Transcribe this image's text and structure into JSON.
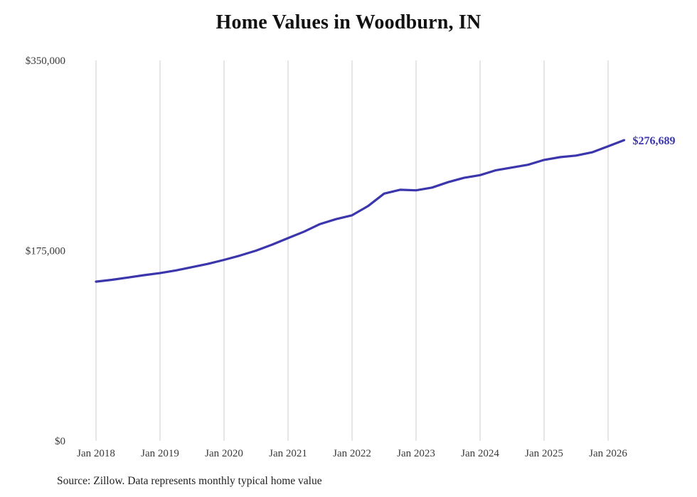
{
  "chart_data": {
    "type": "line",
    "title": "Home Values in Woodburn, IN",
    "source_note": "Source: Zillow. Data represents monthly typical home value",
    "end_label": "$276,689",
    "xlabel": "",
    "ylabel": "",
    "ylim": [
      0,
      350000
    ],
    "x_range": [
      "Jan 2018",
      "Apr 2026"
    ],
    "grid": "vertical-only",
    "legend": "none",
    "colors": {
      "line": "#3b36ab",
      "grid": "#cccccc",
      "title": "#111111",
      "tick": "#3a3a3a",
      "source": "#222222"
    },
    "y_ticks": [
      {
        "v": 0,
        "label": "$0"
      },
      {
        "v": 175000,
        "label": "$175,000"
      },
      {
        "v": 350000,
        "label": "$350,000"
      }
    ],
    "x_ticks": [
      {
        "m": 0,
        "label": "Jan 2018"
      },
      {
        "m": 12,
        "label": "Jan 2019"
      },
      {
        "m": 24,
        "label": "Jan 2020"
      },
      {
        "m": 36,
        "label": "Jan 2021"
      },
      {
        "m": 48,
        "label": "Jan 2022"
      },
      {
        "m": 60,
        "label": "Jan 2023"
      },
      {
        "m": 72,
        "label": "Jan 2024"
      },
      {
        "m": 84,
        "label": "Jan 2025"
      },
      {
        "m": 96,
        "label": "Jan 2026"
      }
    ],
    "series": [
      {
        "name": "Monthly typical home value",
        "points": [
          [
            0,
            146500
          ],
          [
            3,
            148200
          ],
          [
            6,
            150300
          ],
          [
            9,
            152400
          ],
          [
            12,
            154300
          ],
          [
            15,
            156800
          ],
          [
            18,
            159800
          ],
          [
            21,
            162800
          ],
          [
            24,
            166500
          ],
          [
            27,
            170500
          ],
          [
            30,
            175000
          ],
          [
            33,
            180500
          ],
          [
            36,
            186500
          ],
          [
            39,
            192500
          ],
          [
            42,
            199500
          ],
          [
            45,
            204000
          ],
          [
            48,
            207500
          ],
          [
            51,
            216000
          ],
          [
            54,
            227500
          ],
          [
            57,
            231000
          ],
          [
            60,
            230500
          ],
          [
            63,
            233000
          ],
          [
            66,
            238000
          ],
          [
            69,
            242000
          ],
          [
            72,
            244500
          ],
          [
            75,
            249000
          ],
          [
            78,
            251500
          ],
          [
            81,
            254000
          ],
          [
            84,
            258500
          ],
          [
            87,
            261000
          ],
          [
            90,
            262500
          ],
          [
            93,
            265500
          ],
          [
            96,
            271000
          ],
          [
            99,
            276689
          ]
        ]
      }
    ]
  }
}
